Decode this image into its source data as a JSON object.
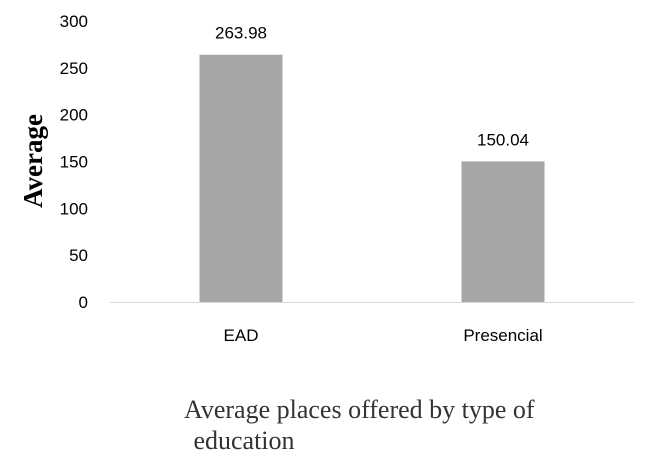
{
  "chart_data": {
    "type": "bar",
    "categories": [
      "EAD",
      "Presencial"
    ],
    "values": [
      263.98,
      150.04
    ],
    "data_labels": [
      "263.98",
      "150.04"
    ],
    "ylabel": "Average",
    "xlabel_lines": [
      "Average places offered by type of",
      "education"
    ],
    "ylim": [
      0,
      300
    ],
    "yticks": [
      "0",
      "50",
      "100",
      "150",
      "200",
      "250",
      "300"
    ],
    "grid": false,
    "bar_color": "#a6a6a6",
    "axis_color": "#d9d9d9"
  }
}
